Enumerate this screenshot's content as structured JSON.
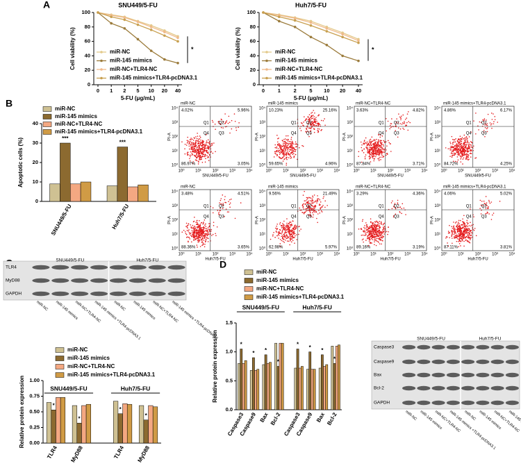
{
  "panel_labels": [
    "A",
    "B",
    "C",
    "D"
  ],
  "chart_data": [
    {
      "type": "line",
      "title": "SNU449/5-FU",
      "x_label": "5-FU (μg/mL)",
      "y_label": "Cell viability (%)",
      "categories": [
        "0",
        "1",
        "2",
        "5",
        "10",
        "20",
        "40"
      ],
      "ylim": [
        0,
        100
      ],
      "yticks": [
        0,
        20,
        40,
        60,
        80,
        100
      ],
      "series": [
        {
          "name": "miR-NC",
          "color": "#e3c98a",
          "values": [
            100,
            97,
            94,
            88,
            82,
            75,
            67
          ]
        },
        {
          "name": "miR-145 mimics",
          "color": "#9b7b3b",
          "values": [
            100,
            85,
            78,
            63,
            47,
            35,
            30
          ]
        },
        {
          "name": "miR-NC+TLR4-NC",
          "color": "#f0b98a",
          "values": [
            100,
            96,
            93,
            87,
            80,
            73,
            65
          ]
        },
        {
          "name": "miR-145 mimics+TLR4-pcDNA3.1",
          "color": "#c8a050",
          "values": [
            100,
            94,
            90,
            83,
            76,
            68,
            60
          ]
        }
      ],
      "annotation": "*"
    },
    {
      "type": "line",
      "title": "Huh7/5-FU",
      "x_label": "5-FU (μg/mL)",
      "y_label": "Cell viability (%)",
      "categories": [
        "0",
        "1",
        "2",
        "5",
        "10",
        "20",
        "40"
      ],
      "ylim": [
        0,
        100
      ],
      "yticks": [
        0,
        20,
        40,
        60,
        80,
        100
      ],
      "series": [
        {
          "name": "miR-NC",
          "color": "#e3c98a",
          "values": [
            100,
            97,
            93,
            88,
            80,
            72,
            63
          ]
        },
        {
          "name": "miR-145 mimics",
          "color": "#9b7b3b",
          "values": [
            100,
            88,
            80,
            66,
            55,
            40,
            33
          ]
        },
        {
          "name": "miR-NC+TLR4-NC",
          "color": "#f0b98a",
          "values": [
            100,
            96,
            92,
            86,
            78,
            70,
            61
          ]
        },
        {
          "name": "miR-145 mimics+TLR4-pcDNA3.1",
          "color": "#c8a050",
          "values": [
            100,
            94,
            89,
            82,
            74,
            66,
            58
          ]
        }
      ],
      "annotation": "*"
    },
    {
      "type": "bar",
      "y_label": "Apoptotic cells (%)",
      "categories": [
        "SNU449/5-FU",
        "Huh7/5-FU"
      ],
      "ylim": [
        0,
        40
      ],
      "yticks": [
        0,
        10,
        20,
        30,
        40
      ],
      "series": [
        {
          "name": "miR-NC",
          "color": "#cfc193",
          "values": [
            9,
            8
          ]
        },
        {
          "name": "miR-145 mimics",
          "color": "#8c6a30",
          "values": [
            30,
            28
          ]
        },
        {
          "name": "miR-NC+TLR4-NC",
          "color": "#f4a882",
          "values": [
            9,
            7.5
          ]
        },
        {
          "name": "miR-145 mimics+TLR4-pcDNA3.1",
          "color": "#d09b45",
          "values": [
            10,
            8.5
          ]
        }
      ],
      "annotations": [
        "***",
        "***"
      ]
    },
    {
      "type": "bar",
      "y_label": "Relative protein expression",
      "groups": [
        "SNU449/5-FU",
        "Huh7/5-FU"
      ],
      "categories": [
        "TLR4",
        "MyD88",
        "TLR4",
        "MyD88"
      ],
      "ylim": [
        0,
        1
      ],
      "yticks": [
        {
          "value": 0,
          "label": "0.00"
        },
        0.25,
        {
          "value": 0.5,
          "label": "0.50"
        },
        0.75,
        {
          "value": 1,
          "label": "1.00"
        }
      ],
      "series": [
        {
          "name": "miR-NC",
          "color": "#cfc193",
          "values": [
            0.65,
            0.6,
            0.67,
            0.6
          ]
        },
        {
          "name": "miR-145 mimics",
          "color": "#8c6a30",
          "values": [
            0.53,
            0.32,
            0.47,
            0.37
          ]
        },
        {
          "name": "miR-NC+TLR4-NC",
          "color": "#f4a882",
          "values": [
            0.73,
            0.6,
            0.63,
            0.6
          ]
        },
        {
          "name": "miR-145 mimics+TLR4-pcDNA3.1",
          "color": "#d09b45",
          "values": [
            0.73,
            0.62,
            0.62,
            0.58
          ]
        }
      ],
      "annotations": [
        "*",
        "*",
        "*",
        "*"
      ]
    },
    {
      "type": "bar",
      "y_label": "Relative protein expression",
      "groups": [
        "SNU449/5-FU",
        "Huh7/5-FU"
      ],
      "categories": [
        "Caspase3",
        "Caspase9",
        "Bax",
        "Bcl-2",
        "Caspase3",
        "Caspase9",
        "Bax",
        "Bcl-2"
      ],
      "ylim": [
        0,
        1.5
      ],
      "yticks": [
        {
          "value": 0,
          "label": "0.0"
        },
        0.5,
        {
          "value": 1,
          "label": "1.0"
        },
        1.5
      ],
      "series": [
        {
          "name": "miR-NC",
          "color": "#cfc193",
          "values": [
            0.8,
            0.68,
            0.78,
            1.15,
            0.72,
            0.7,
            0.72,
            1.1
          ]
        },
        {
          "name": "miR-145 mimics",
          "color": "#8c6a30",
          "values": [
            1.05,
            0.9,
            0.95,
            0.75,
            1.05,
            1.0,
            0.95,
            0.8
          ]
        },
        {
          "name": "miR-NC+TLR4-NC",
          "color": "#f4a882",
          "values": [
            0.8,
            0.68,
            0.8,
            1.15,
            0.72,
            0.7,
            0.75,
            1.1
          ]
        },
        {
          "name": "miR-145 mimics+TLR4-pcDNA3.1",
          "color": "#d09b45",
          "values": [
            0.85,
            0.7,
            0.82,
            1.15,
            0.75,
            0.7,
            0.78,
            1.12
          ]
        }
      ],
      "annotations": [
        "*",
        "*",
        "*",
        "*",
        "*",
        "*",
        "*",
        "*"
      ]
    }
  ],
  "flow_cytometry": {
    "y_label": "PI-A",
    "ticks": [
      "10⁰",
      "10¹",
      "10²",
      "10³",
      "10⁴"
    ],
    "quadrants": [
      "Q1",
      "Q2",
      "Q3",
      "Q4"
    ],
    "plots": [
      {
        "title": "miR-NC",
        "x_label": "SNU449/5-FU",
        "q1": "4.02%",
        "q2": "5.96%",
        "q4": "86.97%",
        "q3": "3.05%"
      },
      {
        "title": "miR-145 mimics",
        "x_label": "SNU449/5-FU",
        "q1": "10.23%",
        "q2": "25.16%",
        "q4": "59.65%",
        "q3": "4.96%"
      },
      {
        "title": "miR-NC+TLR4-NC",
        "x_label": "SNU449/5-FU",
        "q1": "3.63%",
        "q2": "4.82%",
        "q4": "87.84%",
        "q3": "3.71%"
      },
      {
        "title": "miR-145 mimics+TLR4-pcDNA3.1",
        "x_label": "SNU449/5-FU",
        "q1": "4.86%",
        "q2": "6.17%",
        "q4": "84.72%",
        "q3": "4.25%"
      },
      {
        "title": "miR-NC",
        "x_label": "Huh7/5-FU",
        "q1": "3.48%",
        "q2": "4.51%",
        "q4": "88.36%",
        "q3": "3.65%"
      },
      {
        "title": "miR-145 mimics",
        "x_label": "Huh7/5-FU",
        "q1": "9.56%",
        "q2": "21.49%",
        "q4": "62.98%",
        "q3": "5.97%"
      },
      {
        "title": "miR-NC+TLR4-NC",
        "x_label": "Huh7/5-FU",
        "q1": "3.29%",
        "q2": "4.36%",
        "q4": "89.16%",
        "q3": "3.19%"
      },
      {
        "title": "miR-145 mimics+TLR4-pcDNA3.1",
        "x_label": "Huh7/5-FU",
        "q1": "4.06%",
        "q2": "5.02%",
        "q4": "87.11%",
        "q3": "3.81%"
      }
    ]
  },
  "blots": [
    {
      "groups": [
        "SNU449/5-FU",
        "Huh7/5-FU"
      ],
      "rows": [
        "TLR4",
        "MyD88",
        "GAPDH"
      ],
      "lanes": [
        "miR-NC",
        "miR-145 mimics",
        "miR-NC+TLR4-NC",
        "miR-145 mimics +TLR4-pcDNA3.1",
        "miR-NC",
        "miR-145 mimics",
        "miR-NC+TLR4-NC",
        "miR-145 mimics +TLR4-pcDNA3.1"
      ]
    },
    {
      "groups": [
        "SNU449/5-FU",
        "Huh7/5-FU"
      ],
      "rows": [
        "Caspase3",
        "Caspase9",
        "Bax",
        "Bcl-2",
        "GAPDH"
      ],
      "lanes": [
        "miR-NC",
        "miR-145 mimics",
        "miR-NC+TLR4-NC",
        "miR-145 mimics +TLR4-pcDNA3.1",
        "miR-NC",
        "miR-145 mimics",
        "miR-NC+TLR4-NC",
        "miR-145 mimics +TLR4-pcDNA3.1"
      ]
    }
  ]
}
